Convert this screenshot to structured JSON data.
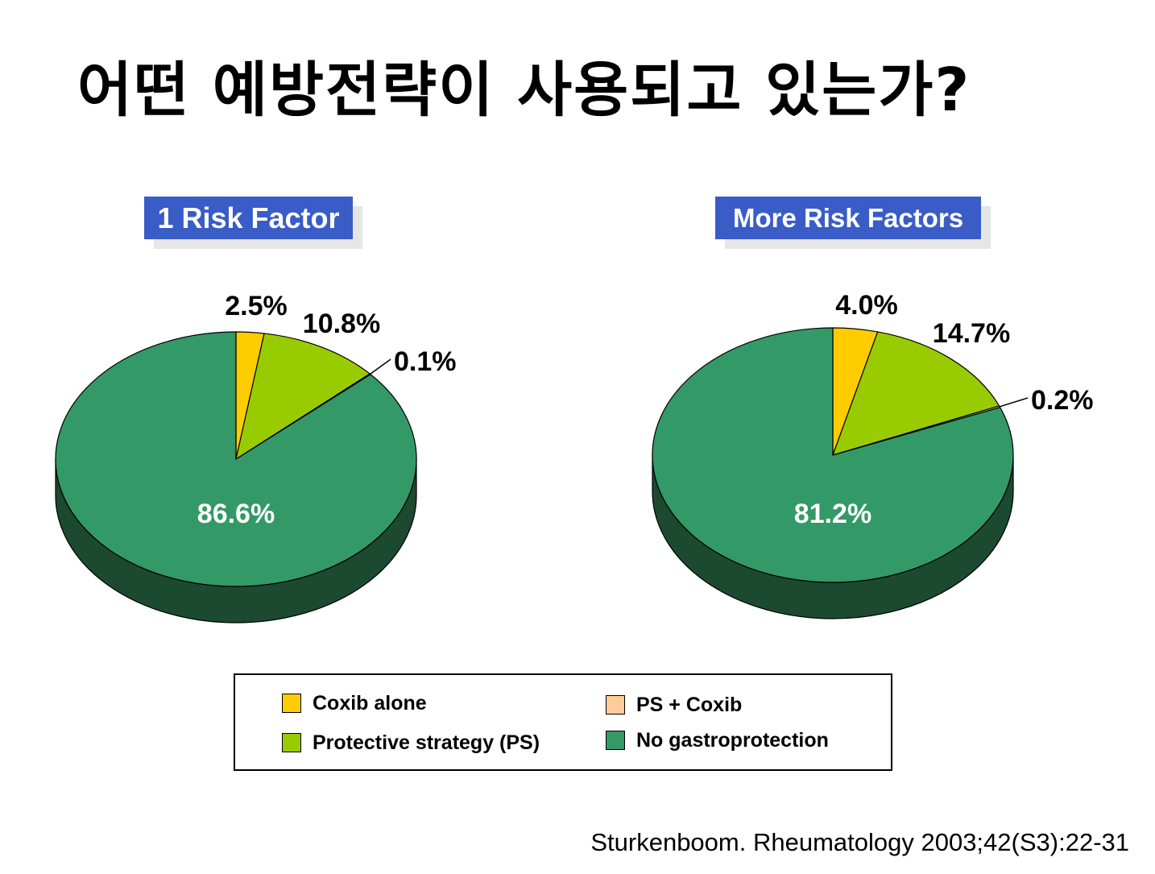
{
  "title": "어떤 예방전략이 사용되고 있는가?",
  "colors": {
    "title_box": "#3a5cc7",
    "coxib_alone": "#ffcc00",
    "protective_strategy": "#99cc00",
    "ps_coxib": "#ffcc99",
    "no_gastroprotection": "#339966",
    "pie_side": "#1c4a30"
  },
  "chart_data": [
    {
      "type": "pie",
      "title": "1 Risk Factor",
      "categories": [
        "Coxib alone",
        "Protective strategy (PS)",
        "PS + Coxib",
        "No gastroprotection"
      ],
      "values": [
        2.5,
        10.8,
        0.1,
        86.6
      ],
      "labels": [
        "2.5%",
        "10.8%",
        "0.1%",
        "86.6%"
      ]
    },
    {
      "type": "pie",
      "title": "More Risk Factors",
      "categories": [
        "Coxib alone",
        "Protective strategy (PS)",
        "PS + Coxib",
        "No gastroprotection"
      ],
      "values": [
        4.0,
        14.7,
        0.2,
        81.2
      ],
      "labels": [
        "4.0%",
        "14.7%",
        "0.2%",
        "81.2%"
      ]
    }
  ],
  "legend": {
    "items": [
      {
        "label": "Coxib alone",
        "color": "#ffcc00"
      },
      {
        "label": "Protective strategy (PS)",
        "color": "#99cc00"
      },
      {
        "label": "PS + Coxib",
        "color": "#ffcc99"
      },
      {
        "label": "No gastroprotection",
        "color": "#339966"
      }
    ]
  },
  "citation": "Sturkenboom.  Rheumatology  2003;42(S3):22-31"
}
